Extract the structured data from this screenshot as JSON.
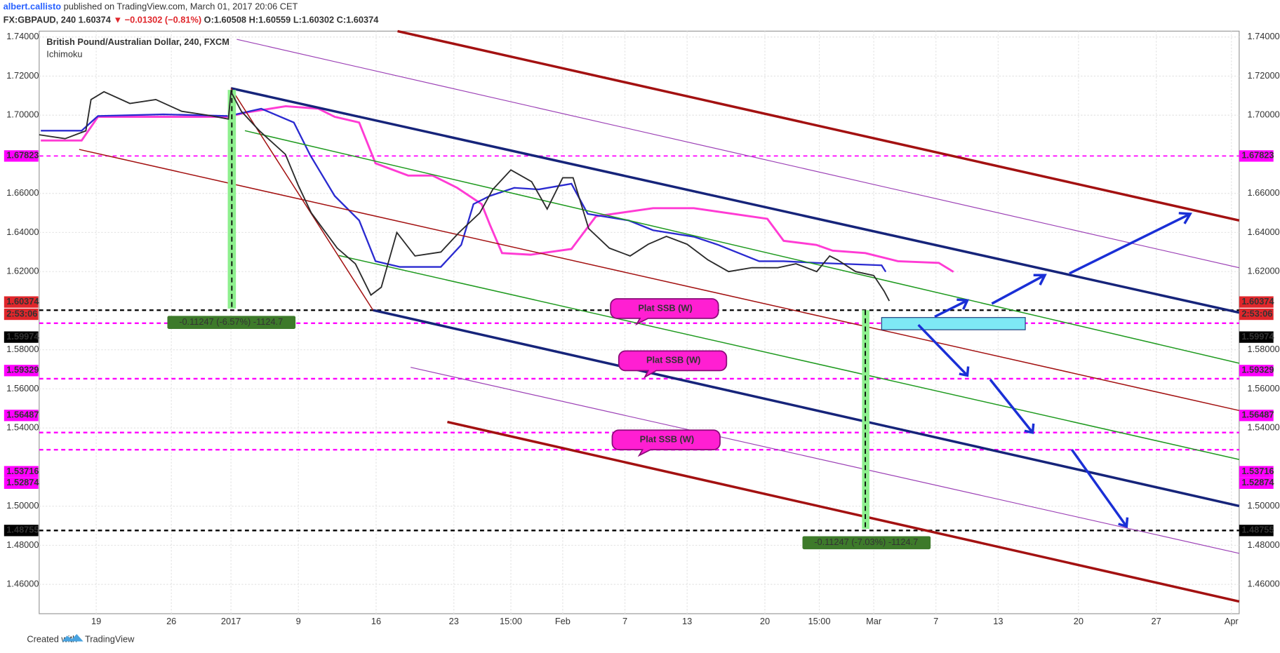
{
  "header": {
    "author": "albert.callisto",
    "published": " published on TradingView.com, March 01, 2017 20:06 CET",
    "symbol": "FX:GBPAUD, 240",
    "last": "1.60374",
    "change": "▼ −0.01302 (−0.81%)",
    "ohlc": "O:1.60508 H:1.60559 L:1.60302 C:1.60374"
  },
  "chart_data": {
    "type": "line",
    "title": "British Pound/Australian Dollar, 240, FXCM",
    "subtitle": "Ichimoku",
    "x": [
      0,
      10,
      18,
      20,
      25,
      35,
      45,
      55,
      65,
      73,
      74,
      78,
      85,
      95,
      100,
      105,
      115,
      122,
      128,
      132,
      138,
      145,
      155,
      162,
      170,
      175,
      182,
      190,
      196,
      202,
      206,
      212,
      220,
      228,
      235,
      242,
      250,
      258,
      266,
      275,
      285,
      292,
      300,
      305,
      308,
      315,
      322,
      326,
      328
    ],
    "series": [
      {
        "color": "#2b2b2b",
        "values": [
          1.69,
          1.688,
          1.692,
          1.708,
          1.712,
          1.706,
          1.708,
          1.702,
          1.7,
          1.698,
          1.712,
          1.702,
          1.692,
          1.68,
          1.664,
          1.65,
          1.632,
          1.624,
          1.608,
          1.612,
          1.64,
          1.628,
          1.63,
          1.64,
          1.65,
          1.662,
          1.672,
          1.666,
          1.652,
          1.668,
          1.668,
          1.642,
          1.632,
          1.628,
          1.634,
          1.638,
          1.634,
          1.626,
          1.62,
          1.622,
          1.622,
          1.624,
          1.62,
          1.628,
          1.626,
          1.62,
          1.618,
          1.61,
          1.605
        ]
      }
    ],
    "xlim": [
      0,
      463
    ],
    "ylim": [
      1.445,
      1.743
    ],
    "xticks": [
      {
        "value": 22,
        "label": "19"
      },
      {
        "value": 51,
        "label": "26"
      },
      {
        "value": 74,
        "label": "2017"
      },
      {
        "value": 100,
        "label": "9"
      },
      {
        "value": 130,
        "label": "16"
      },
      {
        "value": 160,
        "label": "23"
      },
      {
        "value": 182,
        "label": "15:00"
      },
      {
        "value": 202,
        "label": "Feb"
      },
      {
        "value": 226,
        "label": "7"
      },
      {
        "value": 250,
        "label": "13"
      },
      {
        "value": 280,
        "label": "20"
      },
      {
        "value": 301,
        "label": "15:00"
      },
      {
        "value": 322,
        "label": "Mar"
      },
      {
        "value": 346,
        "label": "7"
      },
      {
        "value": 370,
        "label": "13"
      },
      {
        "value": 401,
        "label": "20"
      },
      {
        "value": 431,
        "label": "27"
      },
      {
        "value": 460,
        "label": "Apr"
      }
    ],
    "yticks": [
      {
        "value": 1.46,
        "label": "1.46000"
      },
      {
        "value": 1.48,
        "label": "1.48000"
      },
      {
        "value": 1.5,
        "label": "1.50000"
      },
      {
        "value": 1.54,
        "label": "1.54000"
      },
      {
        "value": 1.56,
        "label": "1.56000"
      },
      {
        "value": 1.58,
        "label": "1.58000"
      },
      {
        "value": 1.62,
        "label": "1.62000"
      },
      {
        "value": 1.64,
        "label": "1.64000"
      },
      {
        "value": 1.66,
        "label": "1.66000"
      },
      {
        "value": 1.7,
        "label": "1.70000"
      },
      {
        "value": 1.72,
        "label": "1.72000"
      },
      {
        "value": 1.74,
        "label": "1.74000"
      }
    ],
    "grid": true,
    "price_labels": [
      {
        "text": "1.67823",
        "color": "#ff00ff"
      },
      {
        "text": "1.60374",
        "color": "#e0262b"
      },
      {
        "text": "2:53:06",
        "color": "#e0262b"
      },
      {
        "text": "1.59974",
        "color": "#000000"
      },
      {
        "text": "1.59329",
        "color": "#ff00ff"
      },
      {
        "text": "1.56487",
        "color": "#ff00ff"
      },
      {
        "text": "1.53716",
        "color": "#ff00ff"
      },
      {
        "text": "1.52874",
        "color": "#ff00ff"
      },
      {
        "text": "1.48755",
        "color": "#000000"
      }
    ],
    "annotations": [
      "Plat SSB (W)",
      "Plat SSB (W)",
      "Plat SSB (W)"
    ],
    "measures": [
      "-0.11247 (-6.57%) -1124.7",
      "-0.11247 (-7.03%) -1124.7"
    ]
  },
  "footer": {
    "prefix": "Created with",
    "brand": "TradingView"
  }
}
